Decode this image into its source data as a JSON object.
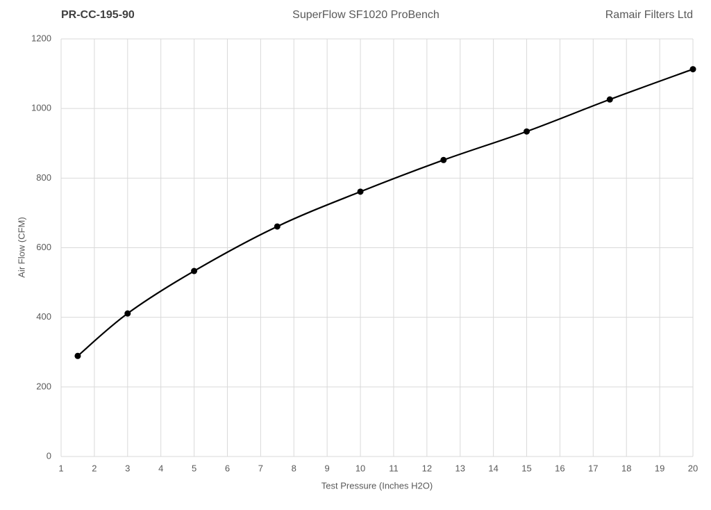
{
  "chart_data": {
    "type": "line",
    "title": "SuperFlow SF1020 ProBench",
    "annotations": [
      "PR-CC-195-90",
      "Ramair Filters Ltd"
    ],
    "x_label": "Test Pressure (Inches H2O)",
    "y_label": "Air Flow (CFM)",
    "x": [
      1.5,
      3,
      5,
      7.5,
      10,
      12.5,
      15,
      17.5,
      20
    ],
    "values": [
      289,
      411,
      533,
      661,
      761,
      852,
      934,
      1026,
      1113
    ],
    "color": "#000000",
    "smooth": true,
    "markers": true,
    "xlim": [
      1,
      20
    ],
    "xticks": [
      1,
      2,
      3,
      4,
      5,
      6,
      7,
      8,
      9,
      10,
      11,
      12,
      13,
      14,
      15,
      16,
      17,
      18,
      19,
      20
    ],
    "ylim": [
      0,
      1200
    ],
    "yticks": [
      0,
      200,
      400,
      600,
      800,
      1000,
      1200
    ],
    "grid": true
  }
}
